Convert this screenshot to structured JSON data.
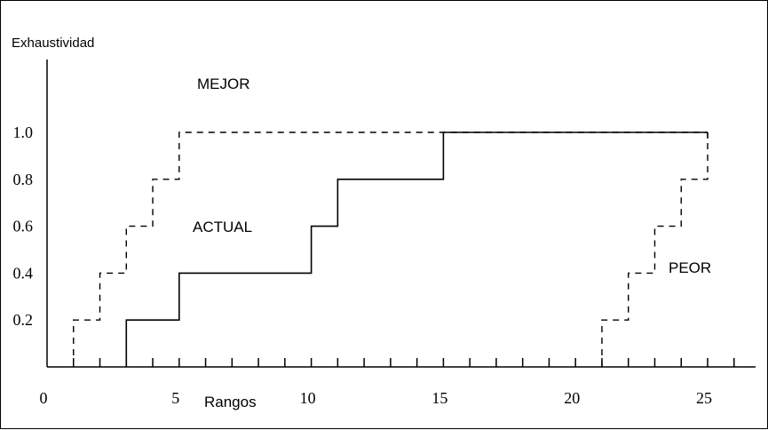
{
  "chart_data": {
    "type": "line",
    "title": "",
    "ylabel": "Exhaustividad",
    "xlabel": "Rangos",
    "xlim": [
      0,
      27
    ],
    "ylim": [
      0,
      1.0
    ],
    "x_ticks": [
      "0",
      "5",
      "10",
      "15",
      "20",
      "25"
    ],
    "y_ticks": [
      "0.2",
      "0.4",
      "0.6",
      "0.8",
      "1.0"
    ],
    "series": [
      {
        "name": "MEJOR",
        "line_style": "dashed",
        "x": [
          1,
          2,
          3,
          4,
          5,
          25
        ],
        "y": [
          0.2,
          0.4,
          0.6,
          0.8,
          1.0,
          1.0
        ]
      },
      {
        "name": "ACTUAL",
        "line_style": "solid",
        "x": [
          3,
          5,
          10,
          11,
          15,
          25
        ],
        "y": [
          0.2,
          0.4,
          0.6,
          0.8,
          1.0,
          1.0
        ]
      },
      {
        "name": "PEOR",
        "line_style": "dashed",
        "x": [
          21,
          22,
          23,
          24,
          25
        ],
        "y": [
          0.2,
          0.4,
          0.6,
          0.8,
          1.0
        ]
      }
    ],
    "grid": false,
    "legend": "none"
  }
}
